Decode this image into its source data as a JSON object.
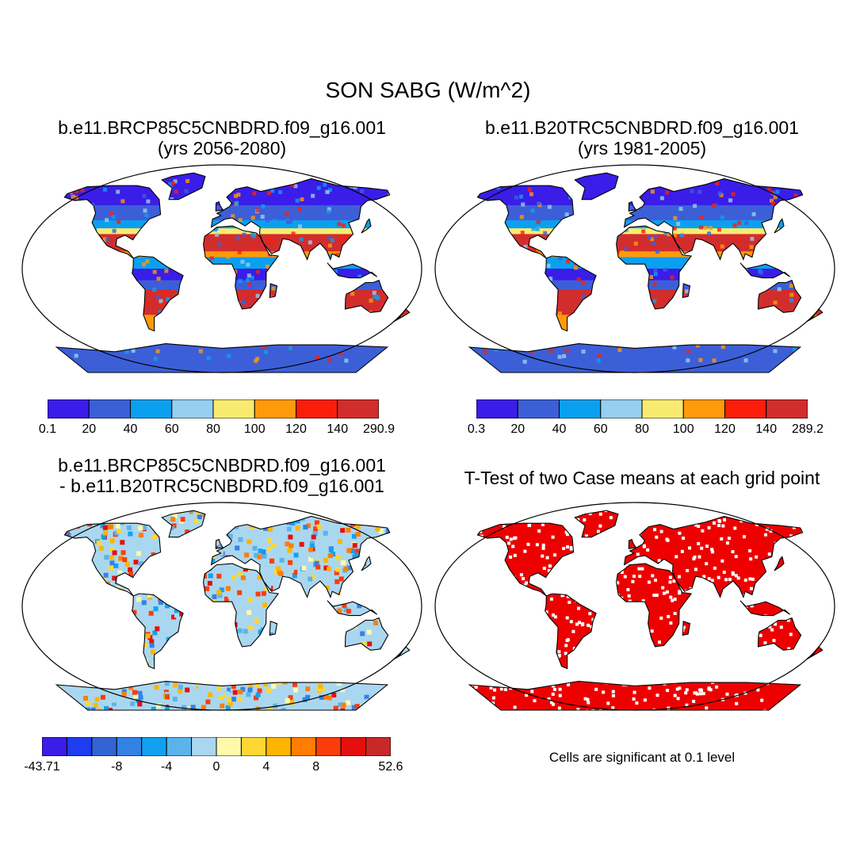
{
  "title": "SON SABG (W/m^2)",
  "panels": [
    {
      "id": "p1",
      "title_line1": "b.e11.BRCP85C5CNBDRD.f09_g16.001",
      "title_line2": "(yrs 2056-2080)",
      "type": "field"
    },
    {
      "id": "p2",
      "title_line1": "b.e11.B20TRC5CNBDRD.f09_g16.001",
      "title_line2": "(yrs 1981-2005)",
      "type": "field"
    },
    {
      "id": "p3",
      "title_line1": "b.e11.BRCP85C5CNBDRD.f09_g16.001",
      "title_line2": "- b.e11.B20TRC5CNBDRD.f09_g16.001",
      "type": "difference"
    },
    {
      "id": "p4",
      "title_line1": "T-Test of two Case means at each grid point",
      "title_line2": "",
      "type": "significance"
    }
  ],
  "colorbars": {
    "field1": {
      "colors": [
        "#3a1de8",
        "#3c5fd8",
        "#0aa0f0",
        "#96cfef",
        "#f8eb70",
        "#ff9a0a",
        "#fa1e0a",
        "#d22d2d"
      ],
      "labels": [
        "0.1",
        "20",
        "40",
        "60",
        "80",
        "100",
        "120",
        "140",
        "290.9"
      ]
    },
    "field2": {
      "colors": [
        "#3a1de8",
        "#3c5fd8",
        "#0aa0f0",
        "#96cfef",
        "#f8eb70",
        "#ff9a0a",
        "#fa1e0a",
        "#d22d2d"
      ],
      "labels": [
        "0.3",
        "20",
        "40",
        "60",
        "80",
        "100",
        "120",
        "140",
        "289.2"
      ]
    },
    "diff": {
      "colors": [
        "#3a1de8",
        "#1e3cf0",
        "#3264d2",
        "#3282e6",
        "#14a0f0",
        "#5ab4eb",
        "#aad7f0",
        "#fffaaa",
        "#ffd732",
        "#ffb400",
        "#ff7d00",
        "#fa3c0a",
        "#e60f0f",
        "#c82828"
      ],
      "labels": [
        {
          "text": "-43.71",
          "boundary": 0
        },
        {
          "text": "-8",
          "boundary": 3
        },
        {
          "text": "-4",
          "boundary": 5
        },
        {
          "text": "0",
          "boundary": 7
        },
        {
          "text": "4",
          "boundary": 9
        },
        {
          "text": "8",
          "boundary": 11
        },
        {
          "text": "52.6",
          "boundary": 14
        }
      ]
    }
  },
  "significance_note": "Cells are significant at 0.1 level",
  "significance_color": "#ee0000"
}
